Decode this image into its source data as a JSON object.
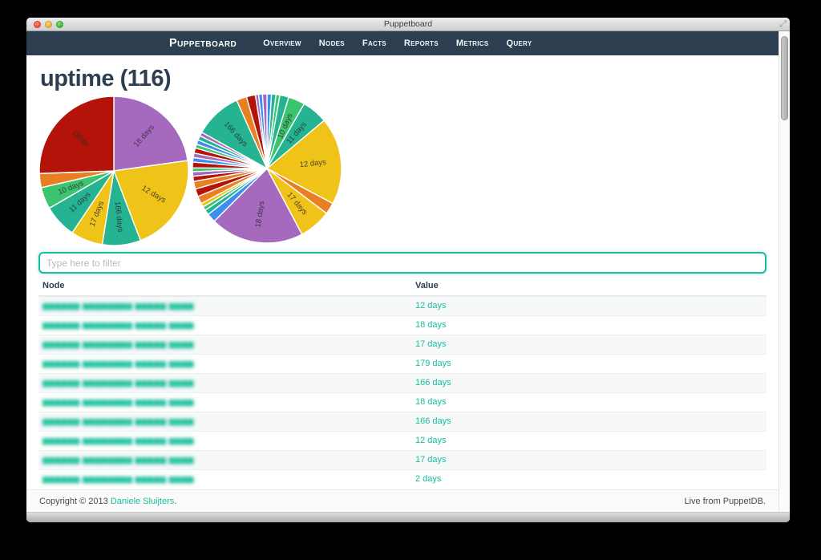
{
  "window": {
    "title": "Puppetboard"
  },
  "navbar": {
    "brand": "Puppetboard",
    "items": [
      {
        "label": "Overview"
      },
      {
        "label": "Nodes"
      },
      {
        "label": "Facts"
      },
      {
        "label": "Reports"
      },
      {
        "label": "Metrics"
      },
      {
        "label": "Query"
      }
    ]
  },
  "page": {
    "heading": "uptime (116)"
  },
  "filter": {
    "placeholder": "Type here to filter"
  },
  "table": {
    "columns": [
      "Node",
      "Value"
    ],
    "node_masked": "▆▆▆▆▆▆ ▆▆▆▆▆▆▆▆ ▆▆▆▆▆ ▆▆▆▆",
    "rows": [
      {
        "value": "12 days"
      },
      {
        "value": "18 days"
      },
      {
        "value": "17 days"
      },
      {
        "value": "179 days"
      },
      {
        "value": "166 days"
      },
      {
        "value": "18 days"
      },
      {
        "value": "166 days"
      },
      {
        "value": "12 days"
      },
      {
        "value": "17 days"
      },
      {
        "value": "2 days"
      }
    ]
  },
  "footer": {
    "copyright_prefix": "Copyright © 2013 ",
    "author_link": "Daniele Sluijters",
    "copyright_suffix": ".",
    "live_text": "Live from PuppetDB."
  },
  "colors": {
    "navbar_bg": "#2c3e50",
    "accent_teal": "#18bc9c",
    "heading": "#2c3e50",
    "palette": {
      "red": "#b41309",
      "purple": "#a569bd",
      "yellow": "#f0c319",
      "teal": "#25b391",
      "green": "#3cc46e",
      "orange": "#e87f23",
      "blue": "#3d8ef0"
    }
  },
  "chart_data": [
    {
      "type": "pie",
      "title": "uptime (116)",
      "legend_position": "none",
      "slices": [
        {
          "label": "18 days",
          "color": "purple",
          "start": 0,
          "end": 82
        },
        {
          "label": "12 days",
          "color": "yellow",
          "start": 82,
          "end": 159
        },
        {
          "label": "166 days",
          "color": "teal",
          "start": 159,
          "end": 189
        },
        {
          "label": "17 days",
          "color": "yellow",
          "start": 189,
          "end": 214
        },
        {
          "label": "11 days",
          "color": "teal",
          "start": 214,
          "end": 240
        },
        {
          "label": "10 days",
          "color": "green",
          "start": 240,
          "end": 257
        },
        {
          "label": "",
          "color": "orange",
          "start": 257,
          "end": 268
        },
        {
          "label": "Other",
          "color": "red",
          "start": 268,
          "end": 360
        }
      ]
    },
    {
      "type": "pie",
      "title": "uptime (116)",
      "legend_position": "none",
      "slices": [
        {
          "label": "",
          "color": "blue",
          "start": 0,
          "end": 3.5
        },
        {
          "label": "",
          "color": "teal",
          "start": 3.5,
          "end": 7
        },
        {
          "label": "",
          "color": "green",
          "start": 7,
          "end": 10
        },
        {
          "label": "",
          "color": "teal",
          "start": 10,
          "end": 17
        },
        {
          "label": "10 days",
          "color": "green",
          "start": 17,
          "end": 30
        },
        {
          "label": "11 days",
          "color": "teal",
          "start": 30,
          "end": 50
        },
        {
          "label": "12 days",
          "color": "yellow",
          "start": 50,
          "end": 118
        },
        {
          "label": "",
          "color": "orange",
          "start": 118,
          "end": 127
        },
        {
          "label": "17 days",
          "color": "yellow",
          "start": 127,
          "end": 152
        },
        {
          "label": "18 days",
          "color": "purple",
          "start": 152,
          "end": 225
        },
        {
          "label": "",
          "color": "blue",
          "start": 225,
          "end": 232
        },
        {
          "label": "",
          "color": "teal",
          "start": 232,
          "end": 236
        },
        {
          "label": "",
          "color": "green",
          "start": 236,
          "end": 239
        },
        {
          "label": "",
          "color": "yellow",
          "start": 239,
          "end": 242
        },
        {
          "label": "",
          "color": "orange",
          "start": 242,
          "end": 248
        },
        {
          "label": "",
          "color": "red",
          "start": 248,
          "end": 254
        },
        {
          "label": "",
          "color": "orange",
          "start": 254,
          "end": 260
        },
        {
          "label": "",
          "color": "red",
          "start": 260,
          "end": 264
        },
        {
          "label": "",
          "color": "purple",
          "start": 264,
          "end": 267.5
        },
        {
          "label": "",
          "color": "green",
          "start": 267.5,
          "end": 270.5
        },
        {
          "label": "",
          "color": "red",
          "start": 270.5,
          "end": 275
        },
        {
          "label": "",
          "color": "blue",
          "start": 275,
          "end": 278.5
        },
        {
          "label": "",
          "color": "purple",
          "start": 278.5,
          "end": 282
        },
        {
          "label": "",
          "color": "red",
          "start": 282,
          "end": 286
        },
        {
          "label": "",
          "color": "green",
          "start": 286,
          "end": 289
        },
        {
          "label": "",
          "color": "blue",
          "start": 289,
          "end": 292.5
        },
        {
          "label": "",
          "color": "teal",
          "start": 292.5,
          "end": 296
        },
        {
          "label": "",
          "color": "purple",
          "start": 296,
          "end": 299
        },
        {
          "label": "166 days",
          "color": "teal",
          "start": 299,
          "end": 336
        },
        {
          "label": "",
          "color": "orange",
          "start": 336,
          "end": 344
        },
        {
          "label": "",
          "color": "red",
          "start": 344,
          "end": 351
        },
        {
          "label": "",
          "color": "purple",
          "start": 351,
          "end": 353.5
        },
        {
          "label": "",
          "color": "blue",
          "start": 353.5,
          "end": 356.5
        },
        {
          "label": "",
          "color": "purple",
          "start": 356.5,
          "end": 360
        }
      ]
    }
  ]
}
